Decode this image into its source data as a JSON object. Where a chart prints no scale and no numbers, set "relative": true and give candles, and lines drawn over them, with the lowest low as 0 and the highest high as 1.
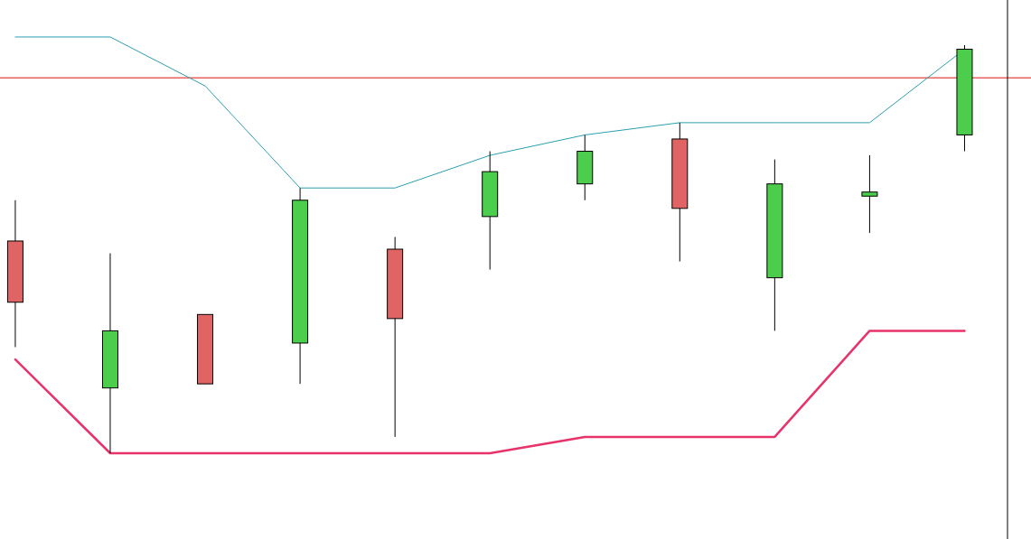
{
  "chart_data": {
    "type": "candlestick",
    "relative": true,
    "categories": [
      null,
      null,
      null,
      null,
      null,
      null,
      null,
      null,
      null,
      null,
      null
    ],
    "ohlc": [
      [
        0.52,
        0.62,
        0.26,
        0.37
      ],
      [
        0.16,
        0.49,
        0,
        0.3
      ],
      [
        0.34,
        0.34,
        0.17,
        0.17
      ],
      [
        0.27,
        0.65,
        0.17,
        0.62
      ],
      [
        0.5,
        0.53,
        0.04,
        0.33
      ],
      [
        0.58,
        0.74,
        0.45,
        0.69
      ],
      [
        0.66,
        0.78,
        0.62,
        0.74
      ],
      [
        0.77,
        0.81,
        0.47,
        0.6
      ],
      [
        0.43,
        0.72,
        0.3,
        0.66
      ],
      [
        0.63,
        0.73,
        0.54,
        0.64
      ],
      [
        0.78,
        1,
        0.74,
        0.99
      ]
    ],
    "colors": [
      "#e06464",
      "#4ccd4c",
      "#e06464",
      "#4ccd4c",
      "#e06464",
      "#4ccd4c",
      "#4ccd4c",
      "#e06464",
      "#4ccd4c",
      "#4ccd4c",
      "#4ccd4c"
    ],
    "series": [
      {
        "type": "line",
        "color": "#2a9fb0",
        "values": [
          1.02,
          1.02,
          0.9,
          0.65,
          0.65,
          0.73,
          0.78,
          0.81,
          0.81,
          0.81,
          0.99
        ]
      },
      {
        "type": "line",
        "color": "#e8336a",
        "values": [
          0.23,
          0,
          0,
          0,
          0,
          0,
          0.04,
          0.04,
          0.04,
          0.3,
          0.3
        ]
      }
    ],
    "ref_lines": [
      {
        "axis": "y",
        "value": 0.92,
        "color": "#e01010"
      }
    ]
  }
}
